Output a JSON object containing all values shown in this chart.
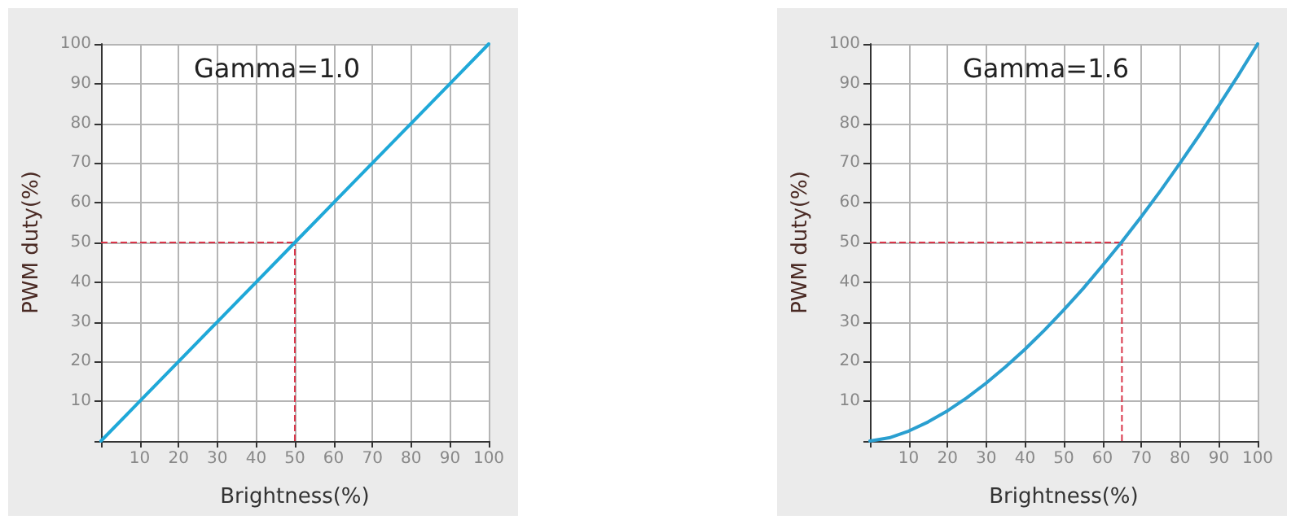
{
  "chart_data": [
    {
      "type": "line",
      "title": "Gamma=1.0",
      "xlabel": "Brightness(%)",
      "ylabel": "PWM duty(%)",
      "x": [
        0,
        10,
        20,
        30,
        40,
        50,
        60,
        70,
        80,
        90,
        100
      ],
      "series": [
        {
          "color": "#1fa8d8",
          "values": [
            0,
            10,
            20,
            30,
            40,
            50,
            60,
            70,
            80,
            90,
            100
          ]
        }
      ],
      "xlim": [
        0,
        100
      ],
      "ylim": [
        0,
        100
      ],
      "xticks": [
        {
          "value": 0,
          "label": null
        },
        10,
        20,
        30,
        40,
        50,
        60,
        70,
        80,
        90,
        100
      ],
      "yticks": [
        {
          "value": 0,
          "label": null
        },
        10,
        20,
        30,
        40,
        50,
        60,
        70,
        80,
        90,
        100
      ],
      "ref_lines": [
        {
          "axis": "y",
          "value": 50,
          "color": "#d9364a",
          "line_style": "dashed"
        },
        {
          "axis": "x",
          "value": 50,
          "color": "#d9364a",
          "line_style": "dashed"
        }
      ],
      "grid": true,
      "marker": "none",
      "line_style": "solid"
    },
    {
      "type": "line",
      "title": "Gamma=1.6",
      "xlabel": "Brightness(%)",
      "ylabel": "PWM duty(%)",
      "x": [
        0,
        5,
        10,
        15,
        20,
        25,
        30,
        35,
        40,
        45,
        50,
        55,
        60,
        65,
        70,
        75,
        80,
        85,
        90,
        95,
        100
      ],
      "series": [
        {
          "color": "#2a9fd0",
          "values": [
            0,
            0.8,
            2.5,
            4.8,
            7.6,
            10.9,
            14.6,
            18.7,
            23.1,
            27.9,
            33,
            38.4,
            44.2,
            50.2,
            56.5,
            63.1,
            70,
            77.1,
            84.5,
            92.1,
            100
          ]
        }
      ],
      "xlim": [
        0,
        100
      ],
      "ylim": [
        0,
        100
      ],
      "xticks": [
        {
          "value": 0,
          "label": null
        },
        10,
        20,
        30,
        40,
        50,
        60,
        70,
        80,
        90,
        100
      ],
      "yticks": [
        {
          "value": 0,
          "label": null
        },
        10,
        20,
        30,
        40,
        50,
        60,
        70,
        80,
        90,
        100
      ],
      "ref_lines": [
        {
          "axis": "y",
          "value": 50,
          "color": "#d9364a",
          "line_style": "dashed"
        },
        {
          "axis": "x",
          "value": 65,
          "color": "#d9364a",
          "line_style": "dashed"
        }
      ],
      "grid": true,
      "marker": "none",
      "line_style": "solid"
    }
  ]
}
